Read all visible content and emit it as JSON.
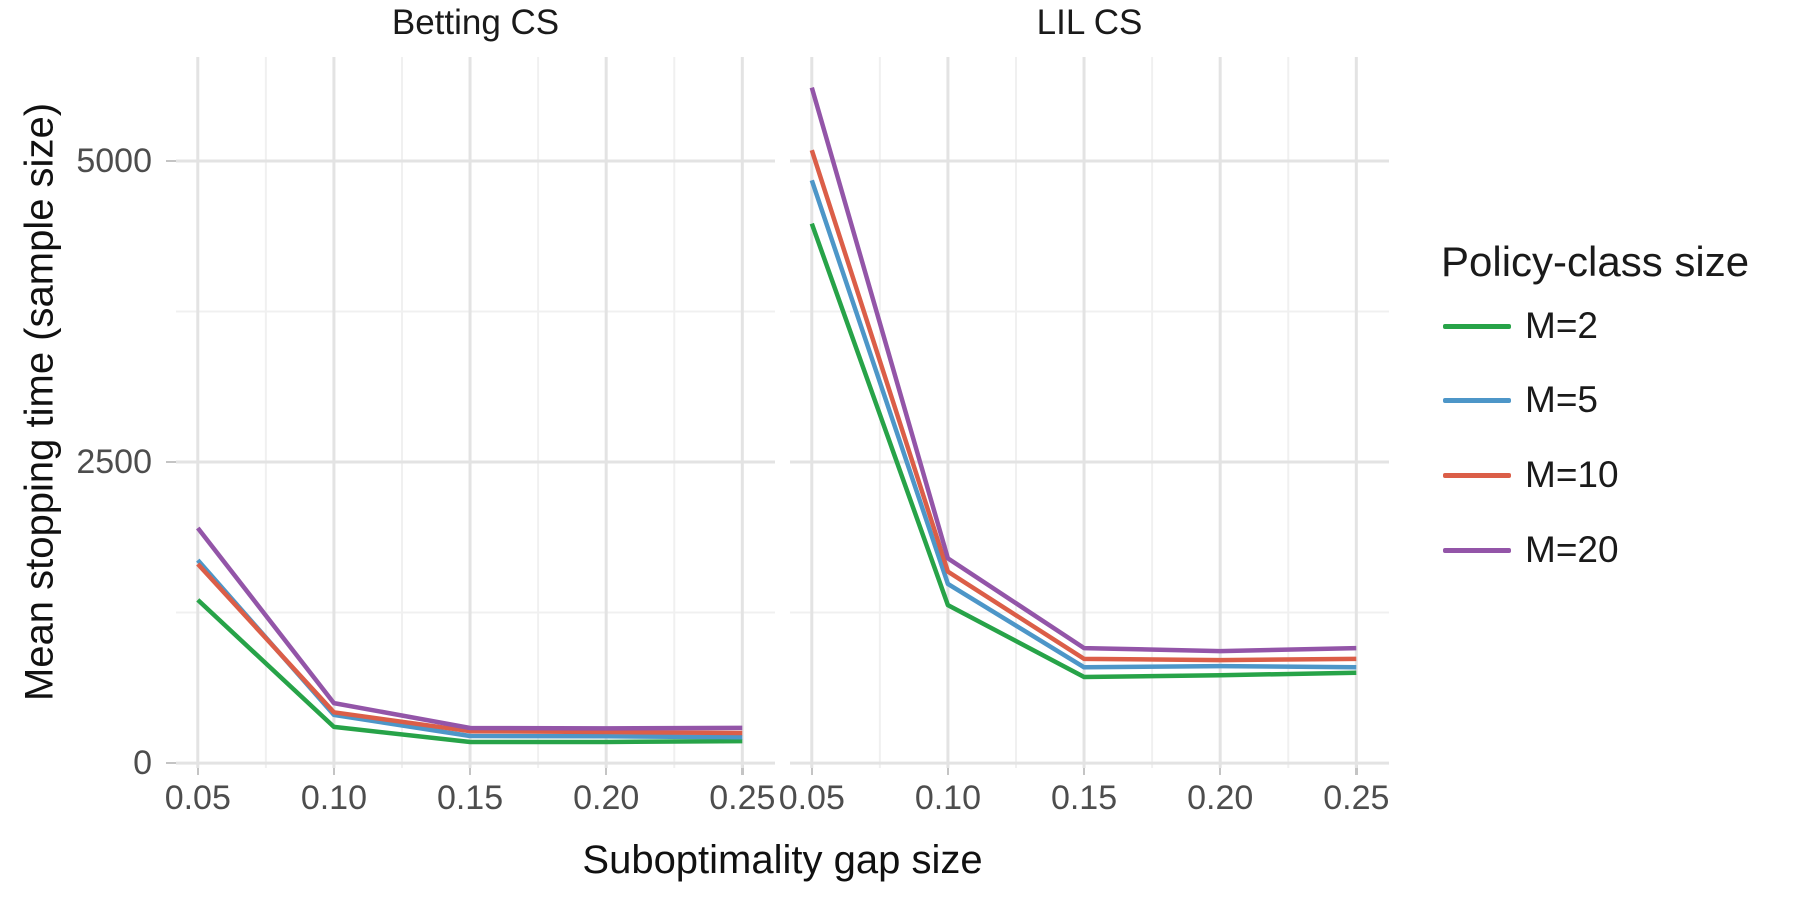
{
  "chart_data": {
    "type": "line",
    "x": {
      "label": "Suboptimality gap size",
      "values": [
        0.05,
        0.1,
        0.15,
        0.2,
        0.25
      ],
      "tick_labels": [
        "0.05",
        "0.10",
        "0.15",
        "0.20",
        "0.25"
      ],
      "range": [
        0.042,
        0.262
      ],
      "minor_gridlines": [
        0.075,
        0.125,
        0.175,
        0.225
      ]
    },
    "y": {
      "label": "Mean stopping time (sample size)",
      "ticks": [
        0,
        2500,
        5000
      ],
      "tick_labels": [
        "0",
        "2500",
        "5000"
      ],
      "range": [
        -41,
        5864
      ],
      "minor_gridlines": [
        1250,
        3750
      ]
    },
    "facets": [
      {
        "title": "Betting CS",
        "series": [
          {
            "name": "M=2",
            "color": "#27A348",
            "values": [
              1355,
              300,
              175,
              175,
              182
            ]
          },
          {
            "name": "M=5",
            "color": "#4D96C8",
            "values": [
              1686,
              400,
              225,
              222,
              215
            ]
          },
          {
            "name": "M=10",
            "color": "#DB5E48",
            "values": [
              1653,
              422,
              265,
              258,
              250
            ]
          },
          {
            "name": "M=20",
            "color": "#9355A8",
            "values": [
              1952,
              498,
              291,
              288,
              292
            ]
          }
        ]
      },
      {
        "title": "LIL CS",
        "series": [
          {
            "name": "M=2",
            "color": "#27A348",
            "values": [
              4480,
              1312,
              715,
              730,
              750
            ]
          },
          {
            "name": "M=5",
            "color": "#4D96C8",
            "values": [
              4840,
              1488,
              795,
              805,
              795
            ]
          },
          {
            "name": "M=10",
            "color": "#DB5E48",
            "values": [
              5090,
              1590,
              865,
              855,
              865
            ]
          },
          {
            "name": "M=20",
            "color": "#9355A8",
            "values": [
              5610,
              1700,
              955,
              930,
              955
            ]
          }
        ]
      }
    ],
    "legend": {
      "title": "Policy-class size",
      "items": [
        {
          "label": "M=2",
          "color": "#27A348"
        },
        {
          "label": "M=5",
          "color": "#4D96C8"
        },
        {
          "label": "M=10",
          "color": "#DB5E48"
        },
        {
          "label": "M=20",
          "color": "#9355A8"
        }
      ]
    },
    "grid": {
      "major_color": "#E3E3E3",
      "minor_color": "#F0F0F0"
    },
    "style": {
      "line_width": 4.5,
      "background": "#FFFFFF",
      "tick_text_color": "#4D4D4D",
      "title_text_color": "#111111"
    }
  }
}
